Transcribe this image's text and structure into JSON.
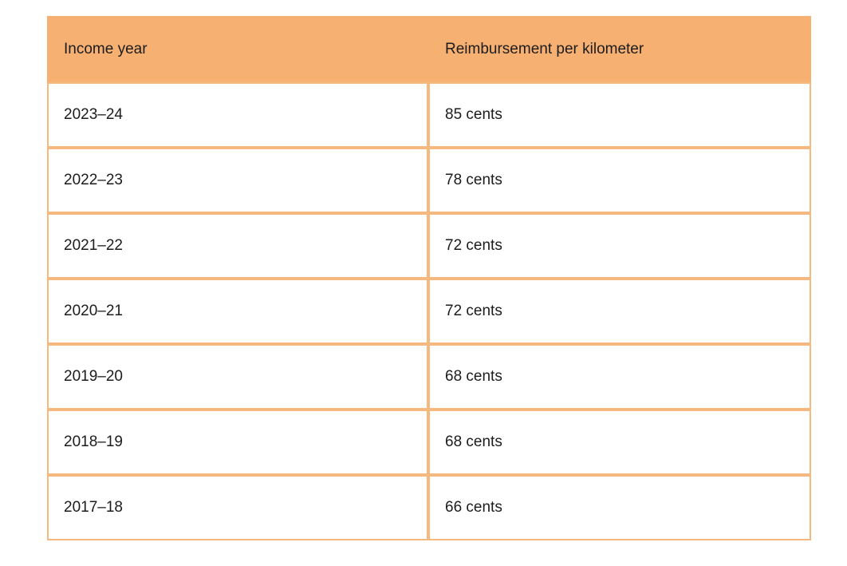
{
  "chart_data": {
    "type": "table",
    "columns": [
      "Income year",
      "Reimbursement per kilometer"
    ],
    "rows": [
      [
        "2023–24",
        "85 cents"
      ],
      [
        "2022–23",
        "78 cents"
      ],
      [
        "2021–22",
        "72 cents"
      ],
      [
        "2020–21",
        "72 cents"
      ],
      [
        "2019–20",
        "68 cents"
      ],
      [
        "2018–19",
        "68 cents"
      ],
      [
        "2017–18",
        "66 cents"
      ]
    ],
    "layout_hints": {
      "header_background": true,
      "gridlines": true,
      "text_align": "left"
    }
  },
  "colors": {
    "header_bg": "#f6b072",
    "border": "#f5b87e",
    "text": "#1c1c1c",
    "page_bg": "#ffffff"
  }
}
